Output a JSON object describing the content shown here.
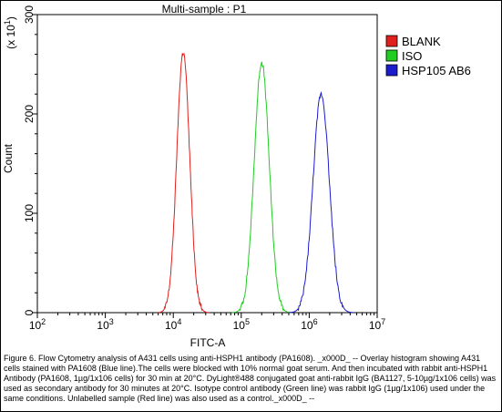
{
  "chart_data": {
    "type": "line",
    "title": "Multi-sample : P1",
    "xlabel": "FITC-A",
    "ylabel": "Count",
    "y_multiplier_label": "(x 10",
    "y_multiplier_exp": "1",
    "y_multiplier_close": ")",
    "x_scale": "log",
    "xlim": [
      100,
      10000000
    ],
    "ylim": [
      0,
      300
    ],
    "x_ticks": [
      {
        "base": "10",
        "exp": "2",
        "value": 100
      },
      {
        "base": "10",
        "exp": "3",
        "value": 1000
      },
      {
        "base": "10",
        "exp": "4",
        "value": 10000
      },
      {
        "base": "10",
        "exp": "5",
        "value": 100000
      },
      {
        "base": "10",
        "exp": "6",
        "value": 1000000
      },
      {
        "base": "10",
        "exp": "7",
        "value": 10000000
      }
    ],
    "y_ticks": [
      {
        "label": "0",
        "value": 0
      },
      {
        "label": "100",
        "value": 100
      },
      {
        "label": "200",
        "value": 200
      },
      {
        "label": "300",
        "value": 300
      }
    ],
    "grid": false,
    "legend_position": "top-right",
    "series": [
      {
        "name": "BLANK",
        "color": "#e0201c",
        "peak_x": 14000,
        "peak_y": 262,
        "spread_decades": 0.095
      },
      {
        "name": "ISO",
        "color": "#22cc22",
        "peak_x": 200000,
        "peak_y": 252,
        "spread_decades": 0.11
      },
      {
        "name": "HSP105 AB6",
        "color": "#1c1ccc",
        "peak_x": 1500000,
        "peak_y": 220,
        "spread_decades": 0.12
      }
    ]
  },
  "caption": "Figure 6. Flow Cytometry analysis of A431 cells using anti-HSPH1 antibody (PA1608). _x000D_ -- Overlay histogram showing A431 cells stained with PA1608 (Blue line).The cells were blocked with 10% normal goat serum. And then incubated with rabbit anti-HSPH1 Antibody (PA1608, 1µg/1x106 cells) for 30 min at 20°C. DyLight®488 conjugated goat anti-rabbit IgG (BA1127, 5-10µg/1x106 cells) was used as secondary antibody for 30 minutes at 20°C. Isotype control antibody (Green line) was rabbit IgG (1µg/1x106) used under the same conditions. Unlabelled sample (Red line) was also used as a control._x000D_ --"
}
